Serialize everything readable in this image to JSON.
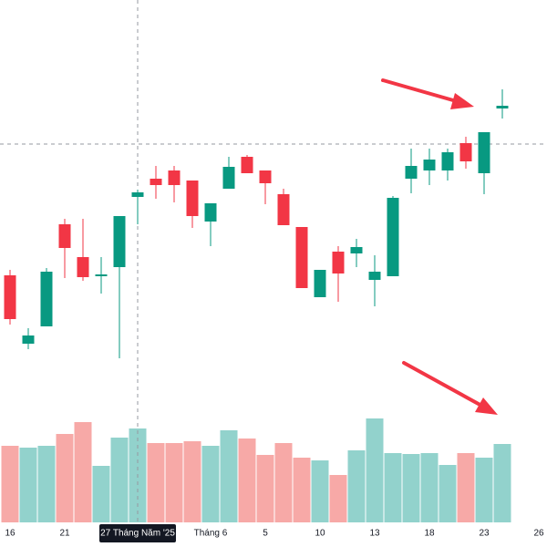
{
  "chart_data": {
    "type": "candlestick",
    "categories": [
      "16",
      null,
      null,
      "21",
      null,
      null,
      null,
      "27 Tháng Năm '25",
      null,
      null,
      null,
      "Tháng 6",
      null,
      null,
      "5",
      null,
      null,
      "10",
      null,
      null,
      "13",
      null,
      null,
      "18",
      null,
      null,
      "23",
      null,
      null,
      "26"
    ],
    "open": [
      298,
      223,
      242,
      354,
      318,
      297,
      307,
      384,
      404,
      413,
      402,
      357,
      393,
      428,
      413,
      387,
      351,
      274,
      324,
      322,
      293,
      297,
      404,
      413,
      413,
      443,
      410,
      481,
      null,
      null
    ],
    "high": [
      304,
      240,
      306,
      360,
      360,
      318,
      363,
      392,
      418,
      418,
      402,
      377,
      428,
      430,
      413,
      393,
      351,
      304,
      330,
      338,
      320,
      385,
      437,
      437,
      437,
      450,
      455,
      502,
      null,
      null
    ],
    "low": [
      244,
      217,
      242,
      295,
      292,
      278,
      207,
      354,
      382,
      378,
      350,
      330,
      393,
      410,
      376,
      353,
      284,
      274,
      269,
      307,
      264,
      297,
      388,
      397,
      402,
      415,
      387,
      470,
      null,
      null
    ],
    "close": [
      250,
      232,
      302,
      328,
      296,
      299,
      363,
      389,
      397,
      397,
      363,
      377,
      417,
      410,
      399,
      353,
      284,
      304,
      300,
      329,
      302,
      383,
      418,
      425,
      433,
      423,
      455,
      484,
      null,
      null
    ],
    "up_color": "#089981",
    "down_color": "#f23645",
    "ylim": [
      0,
      600
    ],
    "volume": {
      "values": [
        84,
        82,
        84,
        97,
        110,
        62,
        93,
        103,
        87,
        87,
        89,
        84,
        101,
        92,
        74,
        87,
        71,
        68,
        52,
        79,
        114,
        76,
        75,
        76,
        63,
        76,
        71,
        86,
        null,
        null
      ],
      "up_color": "#92d2cc",
      "down_color": "#f7a9a7"
    },
    "y2lim": [
      0,
      573
    ],
    "crosshair": {
      "category": 7,
      "price": 442
    }
  }
}
